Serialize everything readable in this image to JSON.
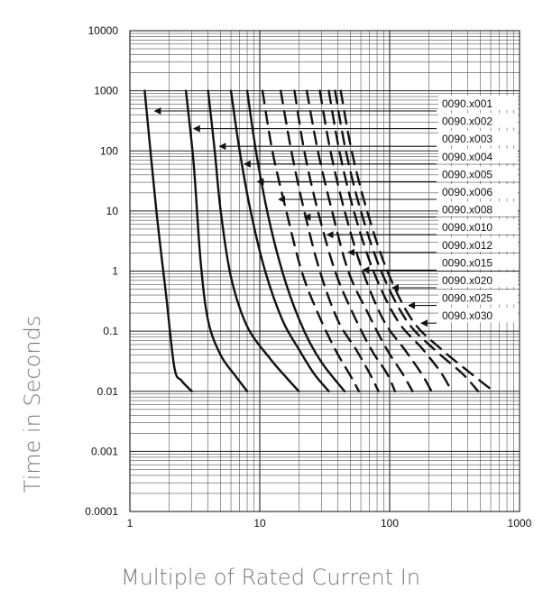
{
  "chart_data": {
    "type": "line",
    "title": "",
    "xlabel": "Multiple of Rated Current In",
    "ylabel": "Time in Seconds",
    "x_scale": "log",
    "y_scale": "log",
    "xlim": [
      1,
      1000
    ],
    "ylim": [
      0.0001,
      10000
    ],
    "x_ticks": [
      "1",
      "10",
      "100",
      "1000"
    ],
    "y_ticks": [
      "0.0001",
      "0.001",
      "0.01",
      "0.1",
      "1",
      "10",
      "100",
      "1000",
      "10000"
    ],
    "grid": true,
    "legend_position": "right",
    "series": [
      {
        "name": "0090.x001",
        "dashed": false,
        "x": [
          1.3,
          1.6,
          1.9,
          2.2,
          2.5,
          3.0
        ],
        "y": [
          1000,
          10,
          0.4,
          0.025,
          0.015,
          0.01
        ]
      },
      {
        "name": "0090.x002",
        "dashed": false,
        "x": [
          2.7,
          3.1,
          3.5,
          4.0,
          5.0,
          6.5,
          8.0
        ],
        "y": [
          1000,
          60,
          1.5,
          0.15,
          0.04,
          0.018,
          0.01
        ]
      },
      {
        "name": "0090.x003",
        "dashed": false,
        "x": [
          4.0,
          4.5,
          5.0,
          6.0,
          8.0,
          12.0,
          16.0,
          20.0
        ],
        "y": [
          1000,
          100,
          10,
          0.8,
          0.12,
          0.035,
          0.017,
          0.01
        ]
      },
      {
        "name": "0090.x004",
        "dashed": false,
        "x": [
          6.0,
          7.0,
          8.5,
          11.0,
          15.0,
          20.0,
          26.0,
          34.0
        ],
        "y": [
          1000,
          100,
          10,
          1,
          0.15,
          0.05,
          0.02,
          0.01
        ]
      },
      {
        "name": "0090.x005",
        "dashed": false,
        "x": [
          8.0,
          9.5,
          12.0,
          16.0,
          22.0,
          30.0,
          45.0
        ],
        "y": [
          1000,
          80,
          6,
          0.6,
          0.1,
          0.03,
          0.01
        ]
      },
      {
        "name": "0090.x006",
        "dashed": true,
        "x": [
          10.5,
          12.5,
          16.0,
          21.0,
          28.0,
          38.0,
          50.0,
          58.0
        ],
        "y": [
          1000,
          100,
          10,
          1,
          0.2,
          0.05,
          0.018,
          0.01
        ]
      },
      {
        "name": "0090.x008",
        "dashed": true,
        "x": [
          14.5,
          17.5,
          22.0,
          29.0,
          40.0,
          55.0,
          70.0,
          82.0
        ],
        "y": [
          1000,
          100,
          10,
          1,
          0.15,
          0.05,
          0.02,
          0.01
        ]
      },
      {
        "name": "0090.x010",
        "dashed": true,
        "x": [
          18.5,
          22.0,
          28.0,
          38.0,
          52.0,
          72.0,
          95.0,
          110.0
        ],
        "y": [
          1000,
          100,
          10,
          1,
          0.2,
          0.05,
          0.02,
          0.01
        ]
      },
      {
        "name": "0090.x012",
        "dashed": true,
        "x": [
          23.0,
          28.0,
          36.0,
          48.0,
          68.0,
          95.0,
          125.0,
          150.0
        ],
        "y": [
          1000,
          100,
          10,
          1,
          0.2,
          0.05,
          0.02,
          0.01
        ]
      },
      {
        "name": "0090.x015",
        "dashed": true,
        "x": [
          29.0,
          35.0,
          45.0,
          62.0,
          90.0,
          130.0,
          175.0,
          210.0
        ],
        "y": [
          1000,
          100,
          10,
          1,
          0.15,
          0.05,
          0.02,
          0.01
        ]
      },
      {
        "name": "0090.x020",
        "dashed": true,
        "x": [
          34.0,
          41.0,
          53.0,
          75.0,
          115.0,
          180.0,
          250.0,
          300.0
        ],
        "y": [
          1000,
          100,
          10,
          1,
          0.15,
          0.05,
          0.02,
          0.01
        ]
      },
      {
        "name": "0090.x025",
        "dashed": true,
        "x": [
          38.0,
          46.0,
          60.0,
          86.0,
          135.0,
          220.0,
          360.0,
          480.0
        ],
        "y": [
          1000,
          100,
          10,
          1,
          0.15,
          0.05,
          0.02,
          0.01
        ]
      },
      {
        "name": "0090.x030",
        "dashed": true,
        "x": [
          42.0,
          51.0,
          67.0,
          96.0,
          150.0,
          250.0,
          420.0,
          630.0
        ],
        "y": [
          1000,
          100,
          10,
          1,
          0.15,
          0.05,
          0.02,
          0.01
        ]
      }
    ],
    "legend_targets": [
      {
        "name": "0090.x001",
        "x": 1.55,
        "y": 500
      },
      {
        "name": "0090.x002",
        "x": 3.1,
        "y": 280
      },
      {
        "name": "0090.x003",
        "x": 4.9,
        "y": 150
      },
      {
        "name": "0090.x004",
        "x": 7.6,
        "y": 80
      },
      {
        "name": "0090.x005",
        "x": 9.6,
        "y": 45
      },
      {
        "name": "0090.x006",
        "x": 14.0,
        "y": 22
      },
      {
        "name": "0090.x008",
        "x": 22.0,
        "y": 10
      },
      {
        "name": "0090.x010",
        "x": 33.0,
        "y": 5
      },
      {
        "name": "0090.x012",
        "x": 48.0,
        "y": 2.5
      },
      {
        "name": "0090.x015",
        "x": 62.0,
        "y": 1.2
      },
      {
        "name": "0090.x020",
        "x": 105.0,
        "y": 0.6
      },
      {
        "name": "0090.x025",
        "x": 140.0,
        "y": 0.33
      },
      {
        "name": "0090.x030",
        "x": 175.0,
        "y": 0.17
      }
    ]
  }
}
